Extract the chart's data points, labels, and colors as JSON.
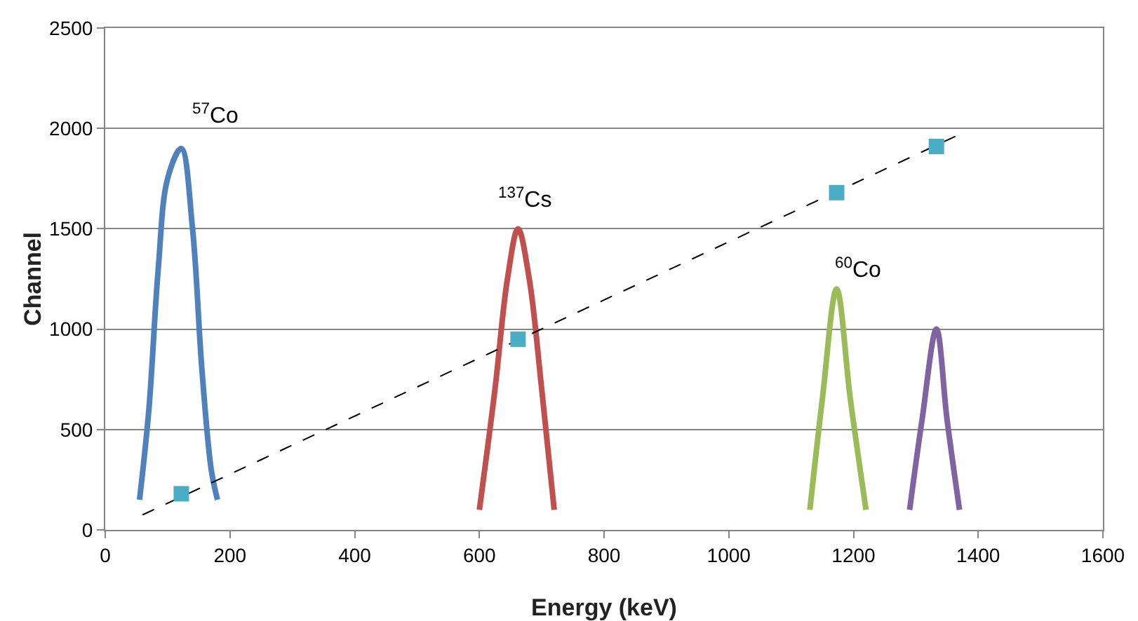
{
  "chart_data": {
    "type": "line",
    "xlabel": "Energy (keV)",
    "ylabel": "Channel",
    "xlim": [
      0,
      1600
    ],
    "xticks": [
      0,
      200,
      400,
      600,
      800,
      1000,
      1200,
      1400,
      1600
    ],
    "ylim": [
      0,
      2500
    ],
    "yticks": [
      0,
      500,
      1000,
      1500,
      2000,
      2500
    ],
    "grid": "y",
    "series": [
      {
        "color": "#4f81bd",
        "x": [
          55,
          70,
          85,
          100,
          122,
          140,
          155,
          170,
          180
        ],
        "values": [
          150,
          600,
          1300,
          1750,
          1900,
          1500,
          800,
          300,
          150
        ]
      },
      {
        "color": "#c0504d",
        "x": [
          600,
          625,
          645,
          662,
          680,
          700,
          720
        ],
        "values": [
          100,
          700,
          1250,
          1500,
          1250,
          700,
          100
        ]
      },
      {
        "color": "#9bbb59",
        "x": [
          1130,
          1150,
          1173,
          1195,
          1220
        ],
        "values": [
          100,
          650,
          1200,
          650,
          100
        ]
      },
      {
        "color": "#8064a2",
        "x": [
          1290,
          1310,
          1333,
          1350,
          1370
        ],
        "values": [
          100,
          550,
          1000,
          550,
          100
        ]
      },
      {
        "color": "#000000",
        "line_style": "dashed",
        "x": [
          60,
          1370
        ],
        "values": [
          75,
          1970
        ]
      },
      {
        "type": "scatter",
        "color": "#4bacc6",
        "marker": "square",
        "x": [
          122,
          662,
          1173,
          1333
        ],
        "values": [
          180,
          950,
          1680,
          1910
        ]
      }
    ],
    "annotations": [
      "$^{57}$Co",
      "$^{137}$Cs",
      "$^{60}$Co"
    ]
  }
}
